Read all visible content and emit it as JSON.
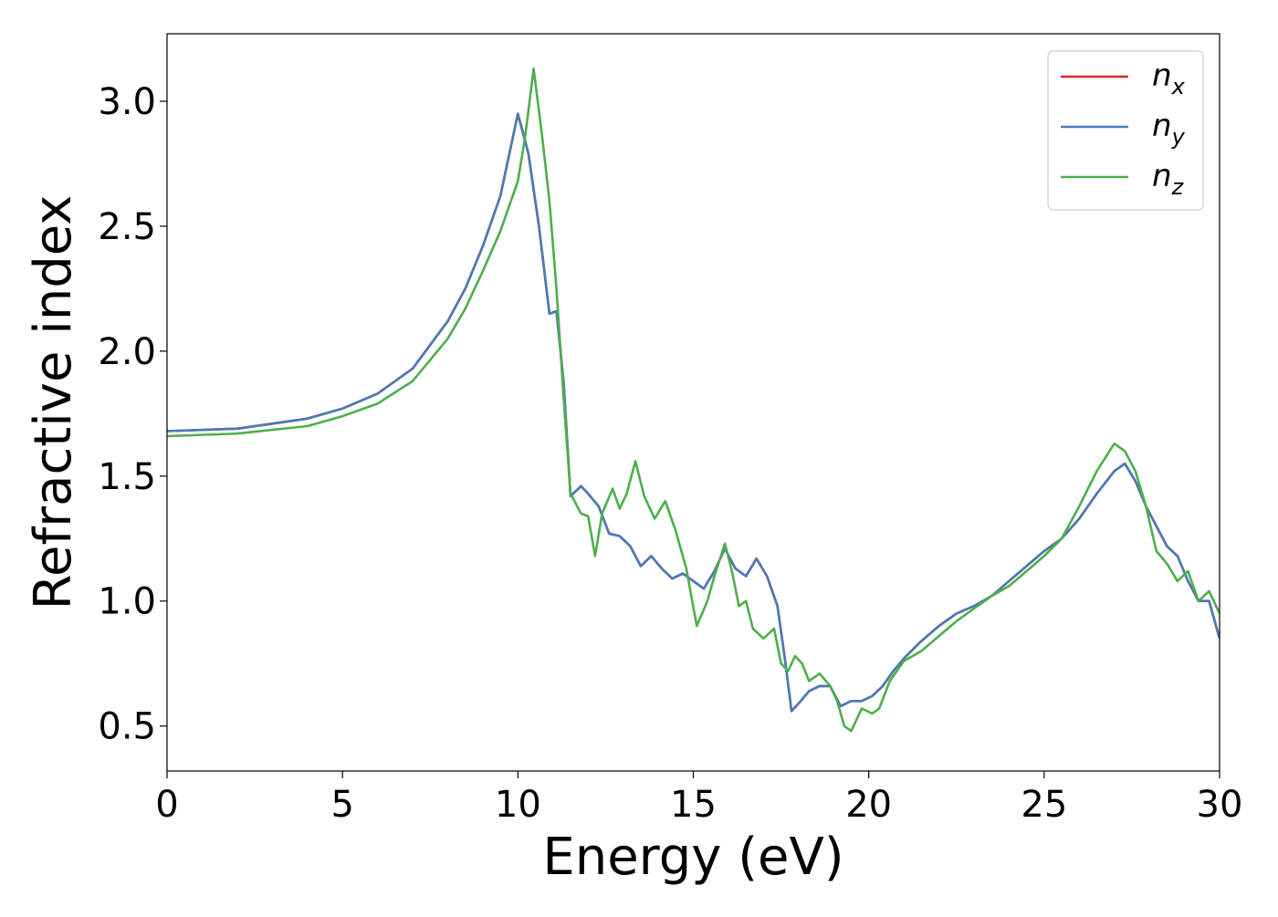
{
  "chart_data": {
    "type": "line",
    "xlabel": "Energy (eV)",
    "ylabel": "Refractive index",
    "xlim": [
      0,
      30
    ],
    "ylim": [
      0.32,
      3.27
    ],
    "xticks": [
      0,
      5,
      10,
      15,
      20,
      25,
      30
    ],
    "xtick_labels": [
      "0",
      "5",
      "10",
      "15",
      "20",
      "25",
      "30"
    ],
    "yticks": [
      0.5,
      1.0,
      1.5,
      2.0,
      2.5,
      3.0
    ],
    "ytick_labels": [
      "0.5",
      "1.0",
      "1.5",
      "2.0",
      "2.5",
      "3.0"
    ],
    "grid": false,
    "legend_position": "top-right",
    "series": [
      {
        "name": "n_x",
        "label_base": "n",
        "label_sub": "x",
        "color": "#d62728",
        "x": [
          0,
          2,
          4,
          5,
          6,
          7,
          8,
          8.5,
          9,
          9.5,
          10,
          10.3,
          10.6,
          10.9,
          11.1,
          11.3,
          11.5,
          11.8,
          12,
          12.3,
          12.6,
          12.9,
          13.2,
          13.5,
          13.8,
          14.1,
          14.4,
          14.7,
          15,
          15.3,
          15.6,
          15.9,
          16.2,
          16.5,
          16.8,
          17.1,
          17.4,
          17.6,
          17.8,
          18,
          18.3,
          18.6,
          18.9,
          19.2,
          19.5,
          19.8,
          20.1,
          20.4,
          20.7,
          21,
          21.5,
          22,
          22.5,
          23,
          23.5,
          24,
          24.5,
          25,
          25.5,
          26,
          26.5,
          27,
          27.3,
          27.6,
          27.9,
          28.2,
          28.5,
          28.8,
          29.1,
          29.4,
          29.7,
          30
        ],
        "y": [
          1.68,
          1.69,
          1.73,
          1.77,
          1.83,
          1.93,
          2.12,
          2.25,
          2.42,
          2.62,
          2.95,
          2.79,
          2.5,
          2.15,
          2.16,
          1.88,
          1.42,
          1.46,
          1.43,
          1.38,
          1.27,
          1.26,
          1.22,
          1.14,
          1.18,
          1.13,
          1.09,
          1.11,
          1.08,
          1.05,
          1.12,
          1.21,
          1.13,
          1.1,
          1.17,
          1.1,
          0.98,
          0.78,
          0.56,
          0.59,
          0.64,
          0.66,
          0.66,
          0.58,
          0.6,
          0.6,
          0.62,
          0.66,
          0.72,
          0.77,
          0.84,
          0.9,
          0.95,
          0.98,
          1.02,
          1.08,
          1.14,
          1.2,
          1.25,
          1.33,
          1.43,
          1.52,
          1.55,
          1.48,
          1.38,
          1.3,
          1.22,
          1.18,
          1.08,
          1.0,
          1.0,
          0.85
        ]
      },
      {
        "name": "n_y",
        "label_base": "n",
        "label_sub": "y",
        "color": "#4a7ab5",
        "x": [
          0,
          2,
          4,
          5,
          6,
          7,
          8,
          8.5,
          9,
          9.5,
          10,
          10.3,
          10.6,
          10.9,
          11.1,
          11.3,
          11.5,
          11.8,
          12,
          12.3,
          12.6,
          12.9,
          13.2,
          13.5,
          13.8,
          14.1,
          14.4,
          14.7,
          15,
          15.3,
          15.6,
          15.9,
          16.2,
          16.5,
          16.8,
          17.1,
          17.4,
          17.6,
          17.8,
          18,
          18.3,
          18.6,
          18.9,
          19.2,
          19.5,
          19.8,
          20.1,
          20.4,
          20.7,
          21,
          21.5,
          22,
          22.5,
          23,
          23.5,
          24,
          24.5,
          25,
          25.5,
          26,
          26.5,
          27,
          27.3,
          27.6,
          27.9,
          28.2,
          28.5,
          28.8,
          29.1,
          29.4,
          29.7,
          30
        ],
        "y": [
          1.68,
          1.69,
          1.73,
          1.77,
          1.83,
          1.93,
          2.12,
          2.25,
          2.42,
          2.62,
          2.95,
          2.79,
          2.5,
          2.15,
          2.16,
          1.88,
          1.42,
          1.46,
          1.43,
          1.38,
          1.27,
          1.26,
          1.22,
          1.14,
          1.18,
          1.13,
          1.09,
          1.11,
          1.08,
          1.05,
          1.12,
          1.21,
          1.13,
          1.1,
          1.17,
          1.1,
          0.98,
          0.78,
          0.56,
          0.59,
          0.64,
          0.66,
          0.66,
          0.58,
          0.6,
          0.6,
          0.62,
          0.66,
          0.72,
          0.77,
          0.84,
          0.9,
          0.95,
          0.98,
          1.02,
          1.08,
          1.14,
          1.2,
          1.25,
          1.33,
          1.43,
          1.52,
          1.55,
          1.48,
          1.38,
          1.3,
          1.22,
          1.18,
          1.08,
          1.0,
          1.0,
          0.85
        ]
      },
      {
        "name": "n_z",
        "label_base": "n",
        "label_sub": "z",
        "color": "#4daf4a",
        "x": [
          0,
          2,
          4,
          5,
          6,
          7,
          8,
          8.5,
          9,
          9.5,
          10,
          10.2,
          10.45,
          10.7,
          10.9,
          11.1,
          11.3,
          11.5,
          11.8,
          12,
          12.2,
          12.4,
          12.7,
          12.9,
          13.1,
          13.35,
          13.6,
          13.9,
          14.2,
          14.5,
          14.8,
          15.1,
          15.4,
          15.6,
          15.9,
          16.1,
          16.3,
          16.5,
          16.7,
          17,
          17.3,
          17.5,
          17.7,
          17.9,
          18.1,
          18.3,
          18.6,
          18.9,
          19.1,
          19.3,
          19.5,
          19.8,
          20.1,
          20.3,
          20.6,
          21,
          21.5,
          22,
          22.5,
          23,
          23.5,
          24,
          24.5,
          25,
          25.5,
          26,
          26.5,
          27,
          27.3,
          27.6,
          27.9,
          28.2,
          28.5,
          28.8,
          29.1,
          29.4,
          29.7,
          30
        ],
        "y": [
          1.66,
          1.67,
          1.7,
          1.74,
          1.79,
          1.88,
          2.05,
          2.17,
          2.32,
          2.48,
          2.68,
          2.85,
          3.13,
          2.85,
          2.6,
          2.25,
          1.82,
          1.43,
          1.35,
          1.34,
          1.18,
          1.35,
          1.45,
          1.37,
          1.43,
          1.56,
          1.42,
          1.33,
          1.4,
          1.28,
          1.13,
          0.9,
          1.0,
          1.1,
          1.23,
          1.12,
          0.98,
          1.0,
          0.89,
          0.85,
          0.89,
          0.75,
          0.72,
          0.78,
          0.75,
          0.68,
          0.71,
          0.66,
          0.6,
          0.5,
          0.48,
          0.57,
          0.55,
          0.57,
          0.68,
          0.76,
          0.8,
          0.86,
          0.92,
          0.97,
          1.02,
          1.06,
          1.12,
          1.18,
          1.25,
          1.38,
          1.52,
          1.63,
          1.6,
          1.52,
          1.38,
          1.2,
          1.15,
          1.08,
          1.12,
          1.0,
          1.04,
          0.95
        ]
      }
    ]
  }
}
